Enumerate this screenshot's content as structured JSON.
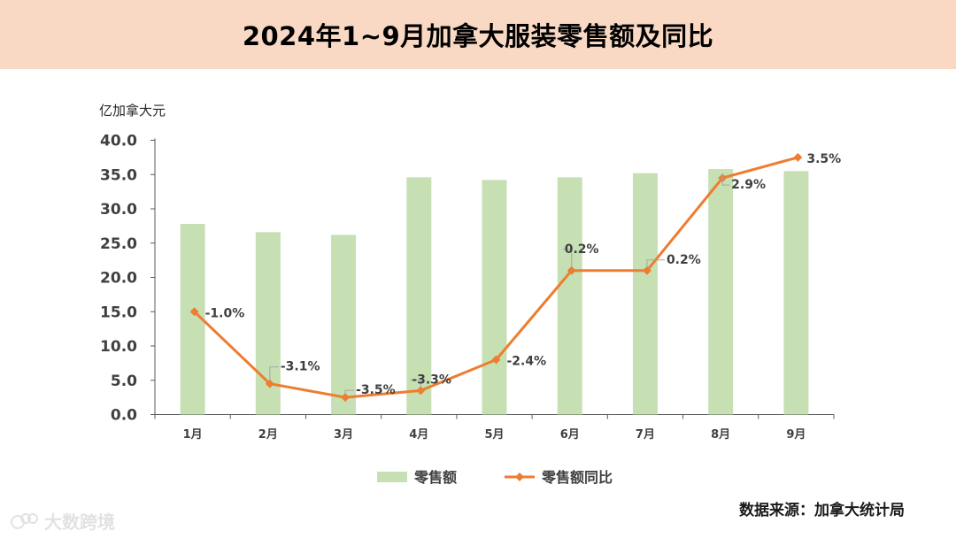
{
  "header": {
    "title": "2024年1~9月加拿大服装零售额及同比"
  },
  "chart_data": {
    "type": "bar+line",
    "title": "2024年1~9月加拿大服装零售额及同比",
    "ylabel": "亿加拿大元",
    "ylim": [
      0,
      40
    ],
    "yticks": [
      "0.0",
      "5.0",
      "10.0",
      "15.0",
      "20.0",
      "25.0",
      "30.0",
      "35.0",
      "40.0"
    ],
    "categories": [
      "1月",
      "2月",
      "3月",
      "4月",
      "5月",
      "6月",
      "7月",
      "8月",
      "9月"
    ],
    "series": [
      {
        "name": "零售额",
        "kind": "bar",
        "color": "#c6e0b4",
        "values": [
          27.8,
          26.6,
          26.2,
          34.6,
          34.2,
          34.6,
          35.2,
          35.8,
          35.5
        ]
      },
      {
        "name": "零售额同比",
        "kind": "line",
        "color": "#ed7d31",
        "values": [
          15.0,
          4.5,
          2.5,
          3.5,
          8.0,
          21.0,
          21.0,
          34.5,
          37.5
        ],
        "labels": [
          "-1.0%",
          "-3.1%",
          "-3.5%",
          "-3.3%",
          "-2.4%",
          "0.2%",
          "0.2%",
          "2.9%",
          "3.5%"
        ]
      }
    ],
    "legend": {
      "position": "bottom",
      "items": [
        "零售额",
        "零售额同比"
      ]
    }
  },
  "footer": {
    "source": "数据来源：加拿大统计局",
    "watermark": "大数跨境"
  }
}
